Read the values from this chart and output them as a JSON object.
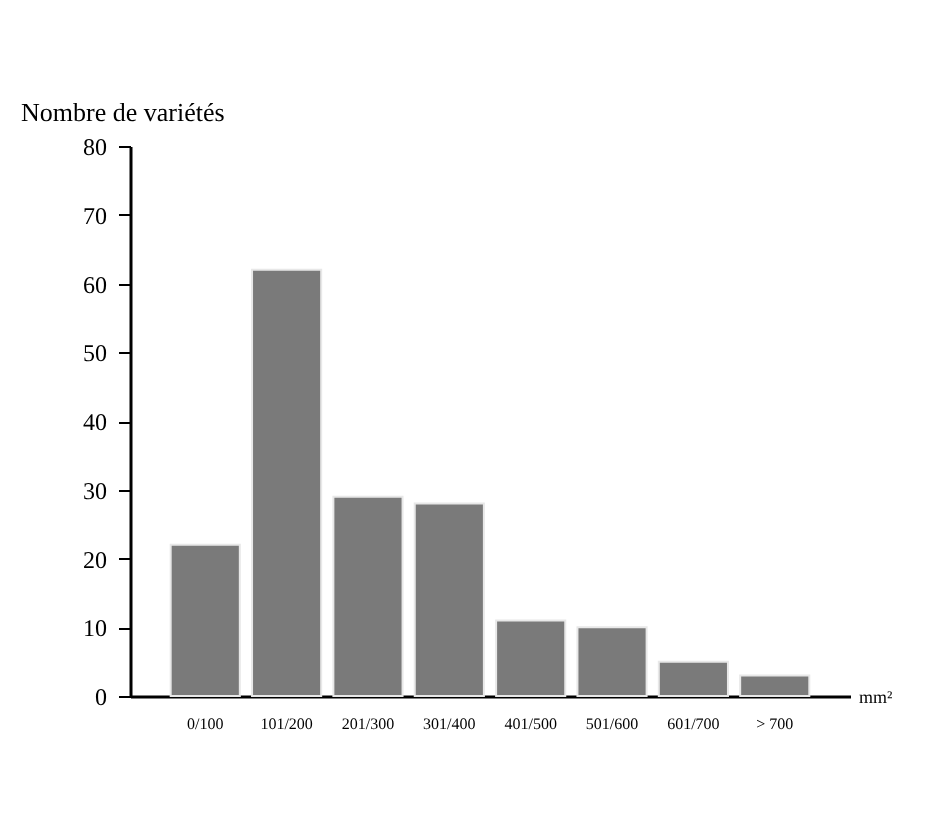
{
  "chart_data": {
    "type": "bar",
    "xlabel": "mm²",
    "ylabel": "Nombre de variétés",
    "categories": [
      "0/100",
      "101/200",
      "201/300",
      "301/400",
      "401/500",
      "501/600",
      "601/700",
      "> 700"
    ],
    "values": [
      22,
      62,
      29,
      28,
      11,
      10,
      5,
      3
    ],
    "color": "#7a7a7a",
    "ylim": [
      0,
      80
    ],
    "yticks": [
      0,
      10,
      20,
      30,
      40,
      50,
      60,
      70,
      80
    ],
    "grid": false
  }
}
